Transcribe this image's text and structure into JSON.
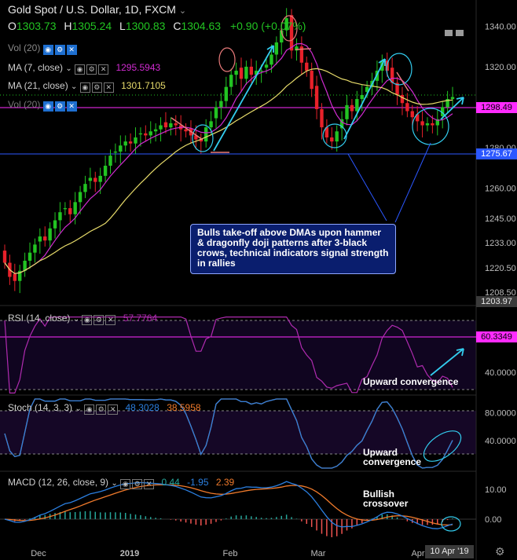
{
  "header": {
    "symbol": "Gold Spot / U.S. Dollar, 1D, FXCM",
    "open_label": "O",
    "open": "1303.73",
    "high_label": "H",
    "high": "1305.24",
    "low_label": "L",
    "low": "1300.83",
    "close_label": "C",
    "close": "1304.63",
    "change": "+0.90 (+0.07%)"
  },
  "indicators": {
    "vol": "Vol (20)",
    "ma7_label": "MA (7, close)",
    "ma7_value": "1295.5943",
    "ma21_label": "MA (21, close)",
    "ma21_value": "1301.7105",
    "vol2": "Vol (20)",
    "rsi_label": "RSI (14, close)",
    "rsi_value": "57.7764",
    "stoch_label": "Stoch (14, 3, 3)",
    "stoch_k": "48.3028",
    "stoch_d": "38.5958",
    "macd_label": "MACD (12, 26, close, 9)",
    "macd_v1": "0.44",
    "macd_v2": "-1.95",
    "macd_v3": "2.39"
  },
  "annotations": {
    "main_note": "Bulls take-off above DMAs upon hammer & dragonfly doji patterns after 3-black crows, technical indicators signal strength in rallies",
    "rsi_note": "Upward convergence",
    "stoch_note_1": "Upward",
    "stoch_note_2": "convergence",
    "macd_note_1": "Bullish",
    "macd_note_2": "crossover"
  },
  "price_tags": {
    "current": "1298.49",
    "support": "1275.67",
    "crosshair": "1203.97",
    "rsi_level": "60.3349",
    "date": "10 Apr '19"
  },
  "colors": {
    "up": "#22c422",
    "down": "#e8212a",
    "ma7": "#d12bd1",
    "ma21": "#e8dc6b",
    "stoch_k": "#2b7fe0",
    "stoch_d": "#f07a2b",
    "macd": "#2b7fe0",
    "signal": "#f07a2b",
    "cyan": "#33ccee",
    "magenta": "#ff2bff"
  },
  "chart_data": [
    {
      "type": "candlestick",
      "title": "Gold Spot / U.S. Dollar, 1D, FXCM",
      "x_ticks": [
        "Dec",
        "2019",
        "Feb",
        "Mar",
        "Apr"
      ],
      "y_ticks": [
        1340.0,
        1320.0,
        1300.0,
        1280.0,
        1260.0,
        1245.0,
        1233.0,
        1220.5,
        1208.5
      ],
      "ylim": [
        1203,
        1346
      ],
      "series": [
        {
          "name": "MA (7, close)",
          "last": 1295.5943
        },
        {
          "name": "MA (21, close)",
          "last": 1301.7105
        }
      ],
      "closes_approx": [
        1223,
        1216,
        1214,
        1219,
        1224,
        1228,
        1232,
        1236,
        1234,
        1240,
        1244,
        1248,
        1250,
        1247,
        1253,
        1258,
        1262,
        1265,
        1263,
        1266,
        1271,
        1276,
        1278,
        1281,
        1283,
        1282,
        1285,
        1287,
        1286,
        1288,
        1289,
        1291,
        1290,
        1292,
        1291,
        1289,
        1288,
        1286,
        1284,
        1283,
        1290,
        1293,
        1300,
        1303,
        1310,
        1316,
        1318,
        1314,
        1320,
        1316,
        1318,
        1318,
        1321,
        1326,
        1332,
        1338,
        1344,
        1328,
        1330,
        1322,
        1318,
        1309,
        1299,
        1290,
        1285,
        1283,
        1288,
        1294,
        1301,
        1298,
        1304,
        1306,
        1310,
        1313,
        1318,
        1323,
        1318,
        1312,
        1306,
        1302,
        1298,
        1295,
        1293,
        1291,
        1292,
        1291,
        1294,
        1300,
        1304,
        1305
      ]
    },
    {
      "type": "line",
      "title": "RSI (14, close)",
      "y_ticks": [
        60.3349,
        40.0
      ],
      "last": 57.7764
    },
    {
      "type": "line",
      "title": "Stoch (14, 3, 3)",
      "y_ticks": [
        80.0,
        40.0
      ],
      "series": [
        {
          "name": "%K",
          "last": 48.3028
        },
        {
          "name": "%D",
          "last": 38.5958
        }
      ]
    },
    {
      "type": "bar",
      "title": "MACD (12, 26, close, 9)",
      "y_ticks": [
        10.0,
        0.0
      ],
      "series": [
        {
          "name": "histogram",
          "last": 0.44
        },
        {
          "name": "MACD",
          "last": -1.95
        },
        {
          "name": "signal",
          "last": 2.39
        }
      ]
    }
  ]
}
